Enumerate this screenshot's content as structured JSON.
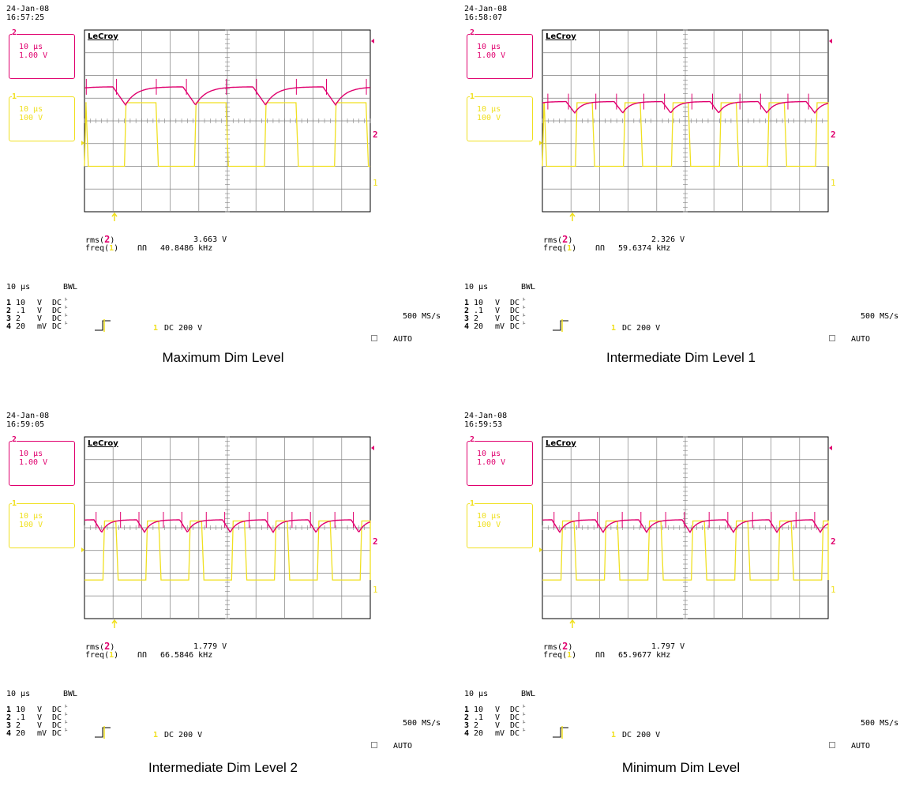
{
  "colors": {
    "ch2": "#e0006e",
    "ch1": "#f0e020",
    "grid": "#808080",
    "frame": "#000000"
  },
  "panels": [
    {
      "caption": "Maximum Dim Level",
      "date": "24-Jan-08",
      "time": "16:57:25",
      "ch2_box": {
        "num": "2",
        "tdiv": "10 µs",
        "vdiv": "1.00 V"
      },
      "ch1_box": {
        "num": "1",
        "tdiv": "10 µs",
        "vdiv": "100 V"
      },
      "brand": "LeCroy",
      "meas": {
        "rms_label": "rms(",
        "rms_ch": "2",
        "rms_close": ")",
        "rms_value": "3.663 V",
        "freq_label": "freq(",
        "freq_ch": "1",
        "freq_close": ")",
        "freq_sym": "ՈՈ",
        "freq_value": "40.8486 kHz"
      },
      "footer": {
        "tbase": "10 µs",
        "bwl": "BWL",
        "ch_rows": [
          [
            "1",
            "10",
            "V",
            "DC"
          ],
          [
            "2",
            ".1",
            "V",
            "DC"
          ],
          [
            "3",
            "2",
            "V",
            "DC"
          ],
          [
            "4",
            "20",
            "mV",
            "DC"
          ]
        ],
        "trigger": "1 DC 200 V",
        "trig_ch": "1",
        "trig_text": "DC 200 V",
        "rate": "500 MS/s",
        "mode": "AUTO"
      }
    },
    {
      "caption": "Intermediate Dim Level 1",
      "date": "24-Jan-08",
      "time": "16:58:07",
      "ch2_box": {
        "num": "2",
        "tdiv": "10 µs",
        "vdiv": "1.00 V"
      },
      "ch1_box": {
        "num": "1",
        "tdiv": "10 µs",
        "vdiv": "100 V"
      },
      "brand": "LeCroy",
      "meas": {
        "rms_label": "rms(",
        "rms_ch": "2",
        "rms_close": ")",
        "rms_value": "2.326 V",
        "freq_label": "freq(",
        "freq_ch": "1",
        "freq_close": ")",
        "freq_sym": "ՈՈ",
        "freq_value": "59.6374 kHz"
      },
      "footer": {
        "tbase": "10 µs",
        "bwl": "BWL",
        "ch_rows": [
          [
            "1",
            "10",
            "V",
            "DC"
          ],
          [
            "2",
            ".1",
            "V",
            "DC"
          ],
          [
            "3",
            "2",
            "V",
            "DC"
          ],
          [
            "4",
            "20",
            "mV",
            "DC"
          ]
        ],
        "trigger": "1 DC 200 V",
        "trig_ch": "1",
        "trig_text": "DC 200 V",
        "rate": "500 MS/s",
        "mode": "AUTO"
      }
    },
    {
      "caption": "Intermediate Dim Level 2",
      "date": "24-Jan-08",
      "time": "16:59:05",
      "ch2_box": {
        "num": "2",
        "tdiv": "10 µs",
        "vdiv": "1.00 V"
      },
      "ch1_box": {
        "num": "1",
        "tdiv": "10 µs",
        "vdiv": "100 V"
      },
      "brand": "LeCroy",
      "meas": {
        "rms_label": "rms(",
        "rms_ch": "2",
        "rms_close": ")",
        "rms_value": "1.779 V",
        "freq_label": "freq(",
        "freq_ch": "1",
        "freq_close": ")",
        "freq_sym": "ՈՈ",
        "freq_value": "66.5846 kHz"
      },
      "footer": {
        "tbase": "10 µs",
        "bwl": "BWL",
        "ch_rows": [
          [
            "1",
            "10",
            "V",
            "DC"
          ],
          [
            "2",
            ".1",
            "V",
            "DC"
          ],
          [
            "3",
            "2",
            "V",
            "DC"
          ],
          [
            "4",
            "20",
            "mV",
            "DC"
          ]
        ],
        "trigger": "1 DC 200 V",
        "trig_ch": "1",
        "trig_text": "DC 200 V",
        "rate": "500 MS/s",
        "mode": "AUTO"
      }
    },
    {
      "caption": "Minimum Dim Level",
      "date": "24-Jan-08",
      "time": "16:59:53",
      "ch2_box": {
        "num": "2",
        "tdiv": "10 µs",
        "vdiv": "1.00 V"
      },
      "ch1_box": {
        "num": "1",
        "tdiv": "10 µs",
        "vdiv": "100 V"
      },
      "brand": "LeCroy",
      "meas": {
        "rms_label": "rms(",
        "rms_ch": "2",
        "rms_close": ")",
        "rms_value": "1.797 V",
        "freq_label": "freq(",
        "freq_ch": "1",
        "freq_close": ")",
        "freq_sym": "ՈՈ",
        "freq_value": "65.9677 kHz"
      },
      "footer": {
        "tbase": "10 µs",
        "bwl": "BWL",
        "ch_rows": [
          [
            "1",
            "10",
            "V",
            "DC"
          ],
          [
            "2",
            ".1",
            "V",
            "DC"
          ],
          [
            "3",
            "2",
            "V",
            "DC"
          ],
          [
            "4",
            "20",
            "mV",
            "DC"
          ]
        ],
        "trigger": "1 DC 200 V",
        "trig_ch": "1",
        "trig_text": "DC 200 V",
        "rate": "500 MS/s",
        "mode": "AUTO"
      }
    }
  ],
  "chart_data": [
    {
      "type": "line",
      "title": "Maximum Dim Level",
      "x_divisions": 10,
      "y_divisions": 8,
      "series": [
        {
          "channel": "2",
          "waveform": "ripple",
          "period_div": 2.45,
          "high_div": 1.5,
          "dip_div": 0.8
        },
        {
          "channel": "1",
          "waveform": "square",
          "period_div": 2.45,
          "duty": 0.45,
          "high_div": 0.8,
          "low_div": -2.0
        }
      ]
    },
    {
      "type": "line",
      "title": "Intermediate Dim Level 1",
      "x_divisions": 10,
      "y_divisions": 8,
      "series": [
        {
          "channel": "2",
          "waveform": "ripple",
          "period_div": 1.68,
          "high_div": 0.85,
          "dip_div": 0.5
        },
        {
          "channel": "1",
          "waveform": "square",
          "period_div": 1.68,
          "duty": 0.35,
          "high_div": 0.8,
          "low_div": -2.0
        }
      ]
    },
    {
      "type": "line",
      "title": "Intermediate Dim Level 2",
      "x_divisions": 10,
      "y_divisions": 8,
      "series": [
        {
          "channel": "2",
          "waveform": "ripple",
          "period_div": 1.5,
          "high_div": 0.35,
          "dip_div": 0.55
        },
        {
          "channel": "1",
          "waveform": "square",
          "period_div": 1.5,
          "duty": 0.3,
          "high_div": 0.3,
          "low_div": -2.3
        }
      ]
    },
    {
      "type": "line",
      "title": "Minimum Dim Level",
      "x_divisions": 10,
      "y_divisions": 8,
      "series": [
        {
          "channel": "2",
          "waveform": "ripple",
          "period_div": 1.52,
          "high_div": 0.35,
          "dip_div": 0.55
        },
        {
          "channel": "1",
          "waveform": "square",
          "period_div": 1.52,
          "duty": 0.3,
          "high_div": 0.3,
          "low_div": -2.3
        }
      ]
    }
  ]
}
